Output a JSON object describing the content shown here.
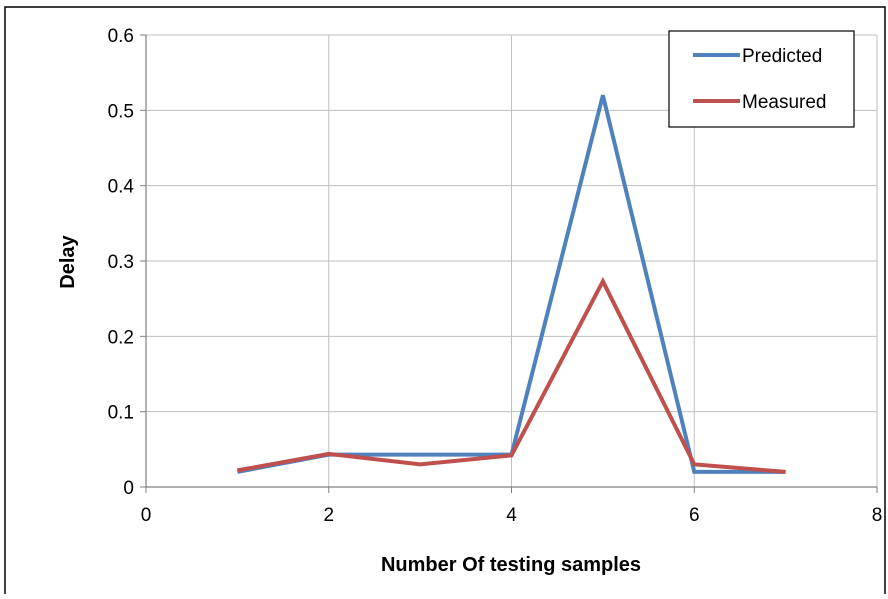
{
  "chart_data": {
    "type": "line",
    "title": "",
    "xlabel": "Number Of testing samples",
    "ylabel": "Delay",
    "xlim": [
      0,
      8
    ],
    "ylim": [
      0,
      0.6
    ],
    "x_ticks": [
      "0",
      "2",
      "4",
      "6",
      "8"
    ],
    "y_ticks": [
      "0",
      "0.1",
      "0.2",
      "0.3",
      "0.4",
      "0.5",
      "0.6"
    ],
    "grid": true,
    "legend_position": "top-right",
    "series": [
      {
        "name": "Predicted",
        "color": "#4F81BD",
        "x": [
          1,
          2,
          3,
          4,
          5,
          6,
          7
        ],
        "y": [
          0.02,
          0.043,
          0.043,
          0.043,
          0.52,
          0.02,
          0.02
        ]
      },
      {
        "name": "Measured",
        "color": "#C0504D",
        "x": [
          1,
          2,
          3,
          4,
          5,
          6,
          7
        ],
        "y": [
          0.022,
          0.044,
          0.03,
          0.042,
          0.273,
          0.03,
          0.02
        ]
      }
    ]
  }
}
